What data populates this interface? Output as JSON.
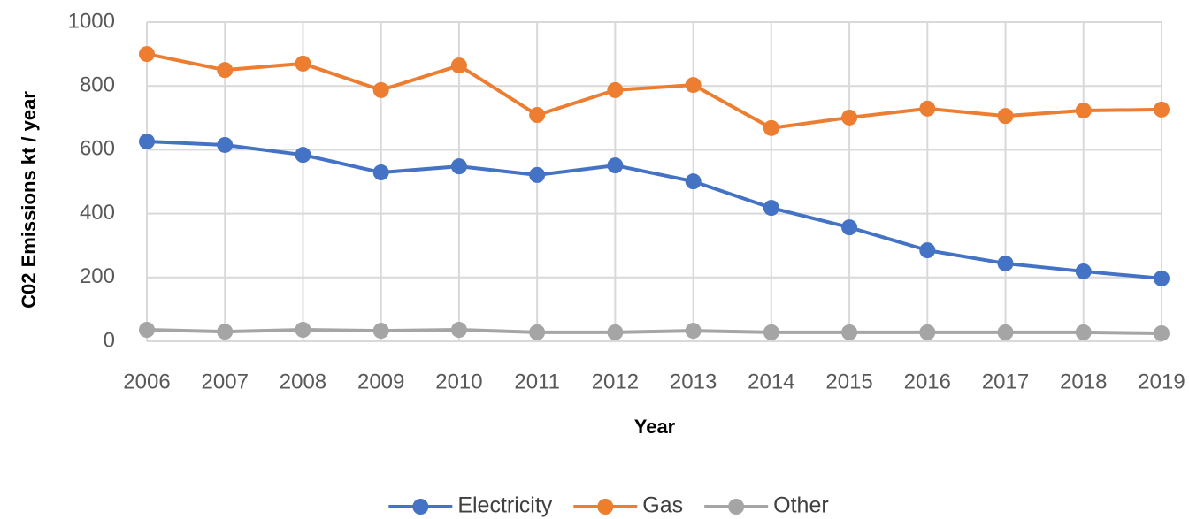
{
  "chart_data": {
    "type": "line",
    "x_label": "Year",
    "y_label": "C02 Emissions kt / year",
    "categories": [
      "2006",
      "2007",
      "2008",
      "2009",
      "2010",
      "2011",
      "2012",
      "2013",
      "2014",
      "2015",
      "2016",
      "2017",
      "2018",
      "2019"
    ],
    "series": [
      {
        "name": "Electricity",
        "color": "#4472c4",
        "values": [
          626,
          615,
          584,
          529,
          548,
          521,
          551,
          501,
          418,
          357,
          285,
          244,
          219,
          197
        ]
      },
      {
        "name": "Gas",
        "color": "#ed7d31",
        "values": [
          900,
          850,
          870,
          787,
          864,
          709,
          787,
          803,
          668,
          701,
          729,
          706,
          723,
          726
        ]
      },
      {
        "name": "Other",
        "color": "#a5a5a5",
        "values": [
          36,
          30,
          36,
          33,
          36,
          28,
          28,
          33,
          28,
          28,
          28,
          28,
          28,
          25
        ]
      }
    ],
    "ylim": [
      0,
      1000
    ],
    "yticks": [
      0,
      200,
      400,
      600,
      800,
      1000
    ],
    "grid": true,
    "legend": "bottom"
  }
}
